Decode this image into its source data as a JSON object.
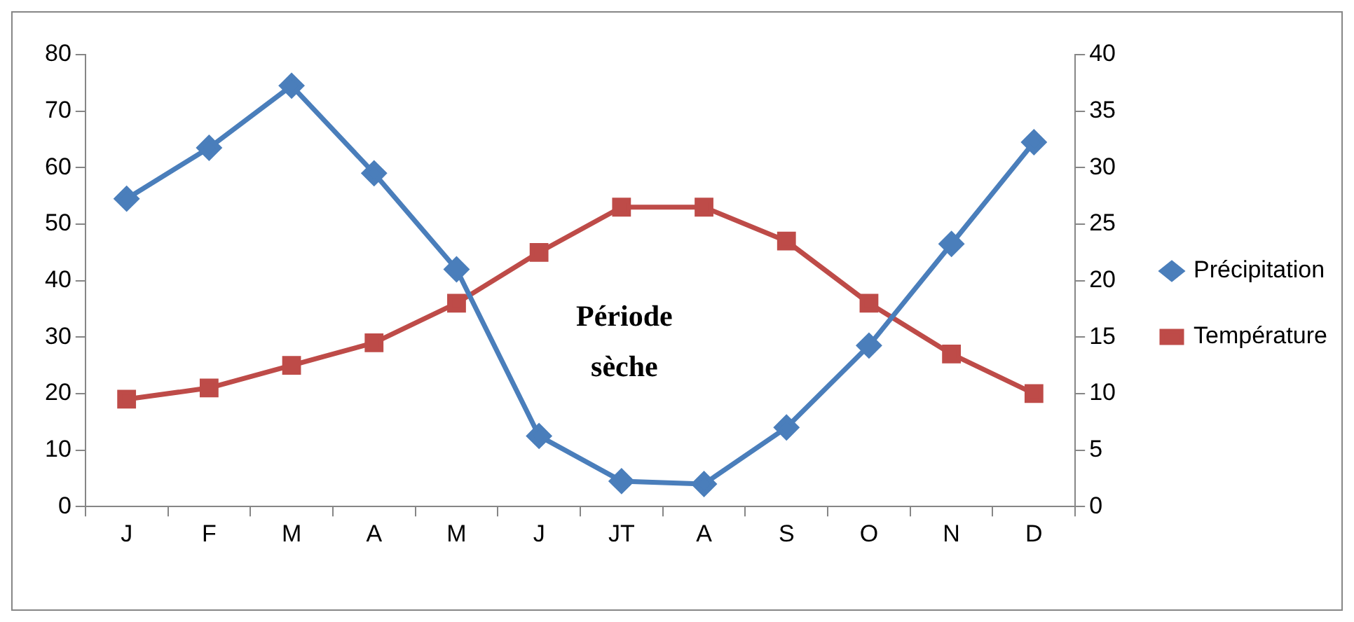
{
  "chart_data": {
    "type": "line",
    "categories": [
      "J",
      "F",
      "M",
      "A",
      "M",
      "J",
      "JT",
      "A",
      "S",
      "O",
      "N",
      "D"
    ],
    "series": [
      {
        "name": "Précipitation",
        "color": "#4a7ebb",
        "marker": "diamond",
        "values": [
          54.5,
          63.5,
          74.5,
          59,
          42,
          12.5,
          4.5,
          4,
          14,
          28.5,
          46.5,
          64.5
        ]
      },
      {
        "name": "Température",
        "color": "#be4b48",
        "marker": "square",
        "axis": "y2",
        "values": [
          9.5,
          10.5,
          12.5,
          14.5,
          18,
          22.5,
          26.5,
          26.5,
          23.5,
          18,
          13.5,
          10
        ]
      }
    ],
    "ylim": [
      0,
      80
    ],
    "yticks": [
      0,
      10,
      20,
      30,
      40,
      50,
      60,
      70,
      80
    ],
    "y2lim": [
      0,
      40
    ],
    "y2ticks": [
      0,
      5,
      10,
      15,
      20,
      25,
      30,
      35,
      40
    ],
    "annotations": [
      "Période sèche"
    ],
    "grid": false,
    "legend": "right"
  }
}
